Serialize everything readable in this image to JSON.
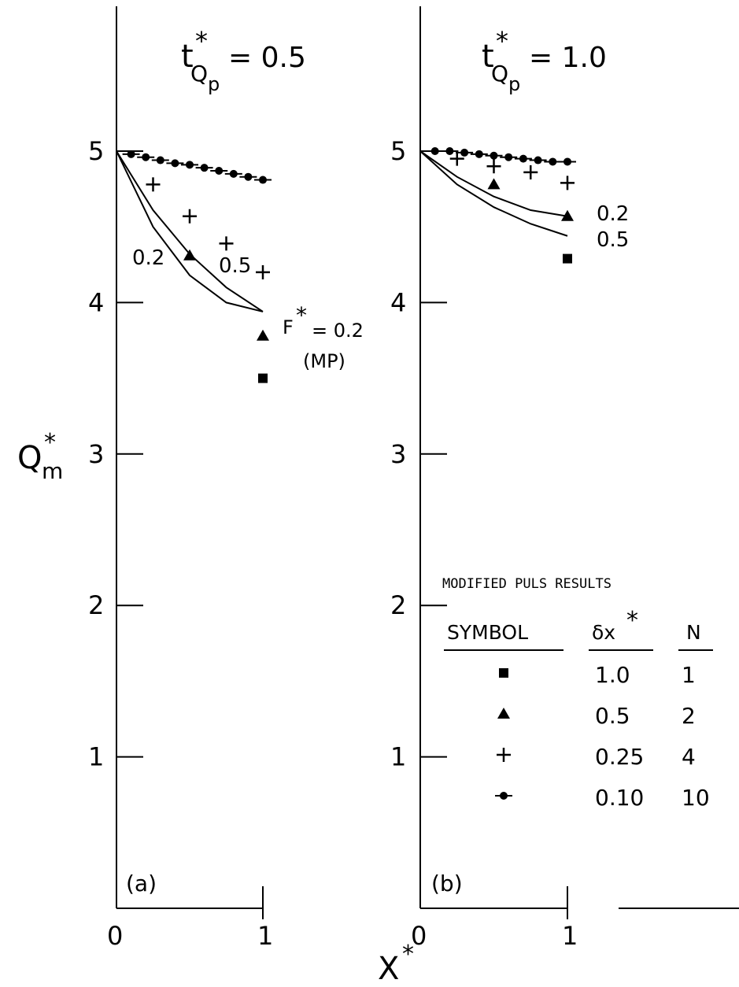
{
  "y_axis_label": "Q",
  "y_axis_sub": "m",
  "x_axis_label": "X",
  "star": "*",
  "legend": {
    "title": "MODIFIED PULS RESULTS",
    "col_symbol": "SYMBOL",
    "col_dx_prefix": "δx",
    "col_n": "N",
    "rows": [
      {
        "symbol": "square",
        "dx": "1.0",
        "n": "1"
      },
      {
        "symbol": "triangle",
        "dx": "0.5",
        "n": "2"
      },
      {
        "symbol": "plus",
        "dx": "0.25",
        "n": "4"
      },
      {
        "symbol": "dash-dot",
        "dx": "0.10",
        "n": "10"
      }
    ]
  },
  "chart_data": [
    {
      "type": "scatter",
      "panel": "(a)",
      "title_prefix": "t",
      "title_sub": "Q",
      "title_subsub": "p",
      "title_value": "= 0.5",
      "xlim": [
        0,
        1
      ],
      "ylim": [
        0,
        5
      ],
      "x_ticks": [
        "0",
        "1"
      ],
      "y_ticks": [
        "1",
        "2",
        "3",
        "4",
        "5"
      ],
      "annotation_f": "F",
      "annotation_f_value": "= 0.2",
      "annotation_mp": "(MP)",
      "curves": [
        {
          "label": "0.2",
          "points": [
            [
              0,
              5.0
            ],
            [
              0.25,
              4.61
            ],
            [
              0.5,
              4.32
            ],
            [
              0.75,
              4.1
            ],
            [
              1.0,
              3.94
            ]
          ]
        },
        {
          "label": "0.5",
          "points": [
            [
              0,
              5.0
            ],
            [
              0.25,
              4.5
            ],
            [
              0.5,
              4.18
            ],
            [
              0.75,
              4.0
            ],
            [
              1.0,
              3.94
            ]
          ]
        }
      ],
      "series": [
        {
          "symbol": "square",
          "x": [
            1.0
          ],
          "y": [
            3.5
          ]
        },
        {
          "symbol": "triangle",
          "x": [
            0.5,
            1.0
          ],
          "y": [
            4.31,
            3.78
          ]
        },
        {
          "symbol": "plus",
          "x": [
            0.25,
            0.5,
            0.75,
            1.0
          ],
          "y": [
            4.78,
            4.57,
            4.39,
            4.2
          ]
        },
        {
          "symbol": "dash-dot",
          "x": [
            0.1,
            0.2,
            0.3,
            0.4,
            0.5,
            0.6,
            0.7,
            0.8,
            0.9,
            1.0
          ],
          "y": [
            4.98,
            4.96,
            4.94,
            4.92,
            4.91,
            4.89,
            4.87,
            4.85,
            4.83,
            4.81
          ]
        }
      ]
    },
    {
      "type": "scatter",
      "panel": "(b)",
      "title_prefix": "t",
      "title_sub": "Q",
      "title_subsub": "p",
      "title_value": "= 1.0",
      "xlim": [
        0,
        1
      ],
      "ylim": [
        0,
        5
      ],
      "x_ticks": [
        "0",
        "1"
      ],
      "y_ticks": [
        "1",
        "2",
        "3",
        "4",
        "5"
      ],
      "curves": [
        {
          "label": "0.2",
          "points": [
            [
              0,
              5.0
            ],
            [
              0.25,
              4.83
            ],
            [
              0.5,
              4.7
            ],
            [
              0.75,
              4.61
            ],
            [
              1.0,
              4.57
            ]
          ]
        },
        {
          "label": "0.5",
          "points": [
            [
              0,
              5.0
            ],
            [
              0.25,
              4.78
            ],
            [
              0.5,
              4.63
            ],
            [
              0.75,
              4.52
            ],
            [
              1.0,
              4.44
            ]
          ]
        }
      ],
      "series": [
        {
          "symbol": "square",
          "x": [
            1.0
          ],
          "y": [
            4.29
          ]
        },
        {
          "symbol": "triangle",
          "x": [
            0.5,
            1.0
          ],
          "y": [
            4.78,
            4.57
          ]
        },
        {
          "symbol": "plus",
          "x": [
            0.25,
            0.5,
            0.75,
            1.0
          ],
          "y": [
            4.95,
            4.9,
            4.86,
            4.79
          ]
        },
        {
          "symbol": "dash-dot",
          "x": [
            0.1,
            0.2,
            0.3,
            0.4,
            0.5,
            0.6,
            0.7,
            0.8,
            0.9,
            1.0
          ],
          "y": [
            5.0,
            5.0,
            4.99,
            4.98,
            4.97,
            4.96,
            4.95,
            4.94,
            4.93,
            4.93
          ]
        }
      ]
    }
  ]
}
